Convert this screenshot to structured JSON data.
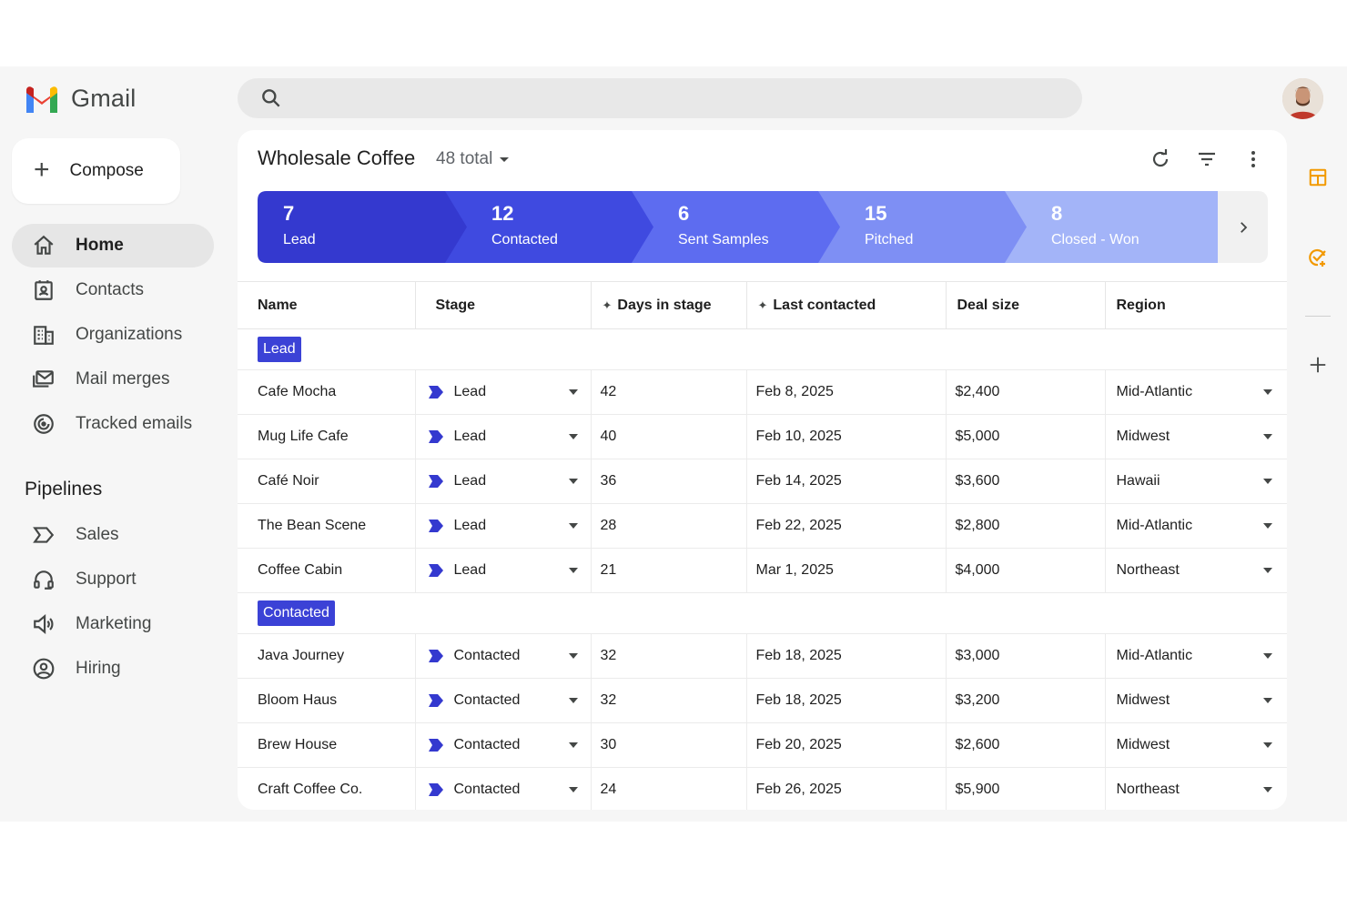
{
  "app": {
    "name": "Gmail"
  },
  "compose": {
    "label": "Compose"
  },
  "nav": {
    "items": [
      {
        "label": "Home",
        "icon": "home-icon",
        "active": true
      },
      {
        "label": "Contacts",
        "icon": "contacts-icon"
      },
      {
        "label": "Organizations",
        "icon": "organizations-icon"
      },
      {
        "label": "Mail merges",
        "icon": "mail-merge-icon"
      },
      {
        "label": "Tracked emails",
        "icon": "tracked-emails-icon"
      }
    ],
    "pipelines_title": "Pipelines",
    "pipelines": [
      {
        "label": "Sales",
        "icon": "pipeline-icon"
      },
      {
        "label": "Support",
        "icon": "headset-icon"
      },
      {
        "label": "Marketing",
        "icon": "megaphone-icon"
      },
      {
        "label": "Hiring",
        "icon": "person-circle-icon"
      }
    ]
  },
  "search": {
    "placeholder": ""
  },
  "card": {
    "title": "Wholesale Coffee",
    "count": "48 total"
  },
  "pipeline_stages": [
    {
      "count": "7",
      "label": "Lead",
      "color": "#3439cf"
    },
    {
      "count": "12",
      "label": "Contacted",
      "color": "#3f4ae0"
    },
    {
      "count": "6",
      "label": "Sent Samples",
      "color": "#5d6cf0"
    },
    {
      "count": "15",
      "label": "Pitched",
      "color": "#7e8ff4"
    },
    {
      "count": "8",
      "label": "Closed - Won",
      "color": "#a3b4f8"
    }
  ],
  "table": {
    "columns": [
      "Name",
      "Stage",
      "Days in stage",
      "Last contacted",
      "Deal size",
      "Region"
    ],
    "groups": [
      {
        "label": "Lead",
        "rows": [
          {
            "name": "Cafe Mocha",
            "stage": "Lead",
            "days": "42",
            "last": "Feb 8, 2025",
            "deal": "$2,400",
            "region": "Mid-Atlantic"
          },
          {
            "name": "Mug Life Cafe",
            "stage": "Lead",
            "days": "40",
            "last": "Feb 10, 2025",
            "deal": "$5,000",
            "region": "Midwest"
          },
          {
            "name": "Café Noir",
            "stage": "Lead",
            "days": "36",
            "last": "Feb 14, 2025",
            "deal": "$3,600",
            "region": "Hawaii"
          },
          {
            "name": "The Bean Scene",
            "stage": "Lead",
            "days": "28",
            "last": "Feb 22, 2025",
            "deal": "$2,800",
            "region": "Mid-Atlantic"
          },
          {
            "name": "Coffee Cabin",
            "stage": "Lead",
            "days": "21",
            "last": "Mar 1, 2025",
            "deal": "$4,000",
            "region": "Northeast"
          }
        ]
      },
      {
        "label": "Contacted",
        "rows": [
          {
            "name": "Java Journey",
            "stage": "Contacted",
            "days": "32",
            "last": "Feb 18, 2025",
            "deal": "$3,000",
            "region": "Mid-Atlantic"
          },
          {
            "name": "Bloom Haus",
            "stage": "Contacted",
            "days": "32",
            "last": "Feb 18, 2025",
            "deal": "$3,200",
            "region": "Midwest"
          },
          {
            "name": "Brew House",
            "stage": "Contacted",
            "days": "30",
            "last": "Feb 20, 2025",
            "deal": "$2,600",
            "region": "Midwest"
          },
          {
            "name": "Craft Coffee Co.",
            "stage": "Contacted",
            "days": "24",
            "last": "Feb 26, 2025",
            "deal": "$5,900",
            "region": "Northeast"
          }
        ]
      }
    ]
  }
}
